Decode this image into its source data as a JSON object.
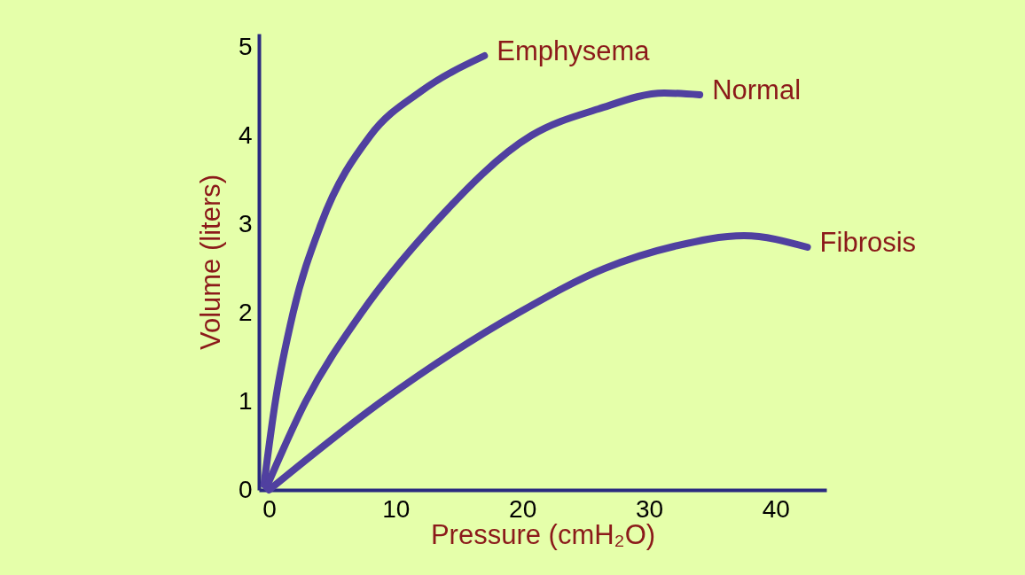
{
  "chart_data": {
    "type": "line",
    "xlabel": "Pressure (cmH₂O)",
    "ylabel": "Volume (liters)",
    "xlim": [
      -0.8,
      44
    ],
    "ylim": [
      0,
      5.15
    ],
    "xticks": [
      0,
      10,
      20,
      30,
      40
    ],
    "yticks": [
      0,
      1,
      2,
      3,
      4,
      5
    ],
    "grid": false,
    "legend": false,
    "series": [
      {
        "name": "Emphysema",
        "color": "#5040a0",
        "x": [
          -0.4,
          0.5,
          1.9,
          4.1,
          8,
          12,
          17
        ],
        "values": [
          0.06,
          1,
          2,
          3,
          4,
          4.5,
          4.9
        ]
      },
      {
        "name": "Normal",
        "color": "#5040a0",
        "x": [
          -0.2,
          2.9,
          7.3,
          13,
          20.7,
          26,
          31.2,
          34
        ],
        "values": [
          0.03,
          1,
          2,
          3,
          4,
          4.3,
          4.48,
          4.46
        ]
      },
      {
        "name": "Fibrosis",
        "color": "#5040a0",
        "x": [
          0,
          8.9,
          19.7,
          26.5,
          32,
          37.5,
          42.5
        ],
        "values": [
          0,
          1,
          2,
          2.5,
          2.75,
          2.87,
          2.74
        ]
      }
    ]
  }
}
